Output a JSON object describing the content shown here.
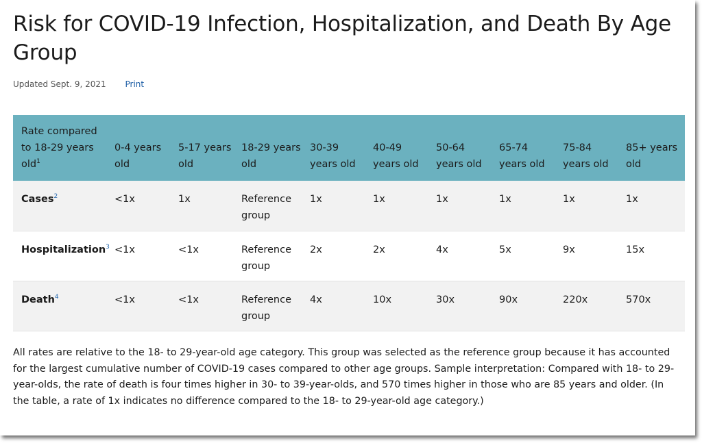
{
  "title": "Risk for COVID-19 Infection, Hospitalization, and Death By Age Group",
  "updated": "Updated Sept. 9, 2021",
  "print_label": "Print",
  "table": {
    "header_first": "Rate compared to 18-29 years old",
    "header_first_sup": "1",
    "columns": [
      "0-4 years old",
      "5-17 years old",
      "18-29 years old",
      "30-39 years old",
      "40-49 years old",
      "50-64 years old",
      "65-74 years old",
      "75-84 years old",
      "85+ years old"
    ],
    "rows": [
      {
        "label": "Cases",
        "sup": "2",
        "values": [
          "<1x",
          "1x",
          "Reference group",
          "1x",
          "1x",
          "1x",
          "1x",
          "1x",
          "1x"
        ]
      },
      {
        "label": "Hospitalization",
        "sup": "3",
        "values": [
          "<1x",
          "<1x",
          "Reference group",
          "2x",
          "2x",
          "4x",
          "5x",
          "9x",
          "15x"
        ]
      },
      {
        "label": "Death",
        "sup": "4",
        "values": [
          "<1x",
          "<1x",
          "Reference group",
          "4x",
          "10x",
          "30x",
          "90x",
          "220x",
          "570x"
        ]
      }
    ]
  },
  "note": "All rates are relative to the 18- to 29-year-old age category. This group was selected as the reference group because it has accounted for the largest cumulative number of COVID-19 cases compared to other age groups. Sample interpretation: Compared with 18- to 29-year-olds, the rate of death is four times higher in 30- to 39-year-olds, and 570 times higher in those who are 85 years and older. (In the table, a rate of 1x indicates no difference compared to the 18- to 29-year-old age category.)"
}
